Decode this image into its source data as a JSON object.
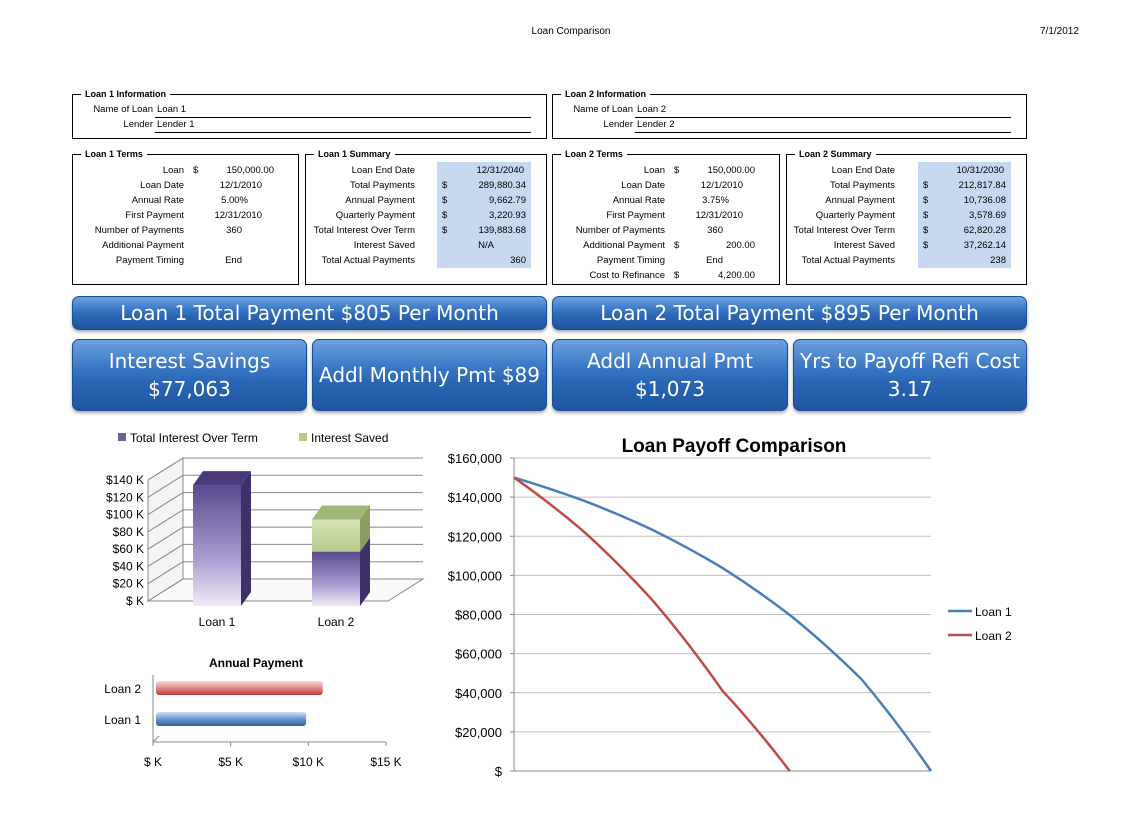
{
  "header": {
    "title": "Loan Comparison",
    "date": "7/1/2012"
  },
  "loan1_info": {
    "legend": "Loan 1 Information",
    "name_label": "Name of Loan",
    "name": "Loan 1",
    "lender_label": "Lender",
    "lender": "Lender 1"
  },
  "loan2_info": {
    "legend": "Loan 2 Information",
    "name_label": "Name of Loan",
    "name": "Loan 2",
    "lender_label": "Lender",
    "lender": "Lender 2"
  },
  "loan1_terms": {
    "legend": "Loan 1 Terms",
    "rows": [
      {
        "label": "Loan",
        "sym": "$",
        "value": "150,000.00"
      },
      {
        "label": "Loan Date",
        "sym": "",
        "value": "12/1/2010"
      },
      {
        "label": "Annual Rate",
        "sym": "",
        "value": "5.00%"
      },
      {
        "label": "First Payment",
        "sym": "",
        "value": "12/31/2010"
      },
      {
        "label": "Number of Payments",
        "sym": "",
        "value": "360"
      },
      {
        "label": "Additional Payment",
        "sym": "",
        "value": ""
      },
      {
        "label": "Payment Timing",
        "sym": "",
        "value": "End"
      }
    ]
  },
  "loan1_summary": {
    "legend": "Loan 1 Summary",
    "rows": [
      {
        "label": "Loan End Date",
        "sym": "",
        "value": "12/31/2040"
      },
      {
        "label": "Total Payments",
        "sym": "$",
        "value": "289,880.34"
      },
      {
        "label": "Annual Payment",
        "sym": "$",
        "value": "9,662.79"
      },
      {
        "label": "Quarterly Payment",
        "sym": "$",
        "value": "3,220.93"
      },
      {
        "label": "Total Interest Over Term",
        "sym": "$",
        "value": "139,883.68"
      },
      {
        "label": "Interest Saved",
        "sym": "",
        "value": "N/A"
      },
      {
        "label": "Total Actual Payments",
        "sym": "",
        "value": "360"
      }
    ]
  },
  "loan2_terms": {
    "legend": "Loan 2 Terms",
    "rows": [
      {
        "label": "Loan",
        "sym": "$",
        "value": "150,000.00"
      },
      {
        "label": "Loan Date",
        "sym": "",
        "value": "12/1/2010"
      },
      {
        "label": "Annual Rate",
        "sym": "",
        "value": "3.75%"
      },
      {
        "label": "First Payment",
        "sym": "",
        "value": "12/31/2010"
      },
      {
        "label": "Number of Payments",
        "sym": "",
        "value": "360"
      },
      {
        "label": "Additional Payment",
        "sym": "$",
        "value": "200.00"
      },
      {
        "label": "Payment Timing",
        "sym": "",
        "value": "End"
      },
      {
        "label": "Cost to Refinance",
        "sym": "$",
        "value": "4,200.00"
      }
    ]
  },
  "loan2_summary": {
    "legend": "Loan 2 Summary",
    "rows": [
      {
        "label": "Loan End Date",
        "sym": "",
        "value": "10/31/2030"
      },
      {
        "label": "Total Payments",
        "sym": "$",
        "value": "212,817.84"
      },
      {
        "label": "Annual Payment",
        "sym": "$",
        "value": "10,736.08"
      },
      {
        "label": "Quarterly Payment",
        "sym": "$",
        "value": "3,578.69"
      },
      {
        "label": "Total Interest Over Term",
        "sym": "$",
        "value": "62,820.28"
      },
      {
        "label": "Interest Saved",
        "sym": "$",
        "value": "37,262.14"
      },
      {
        "label": "Total Actual Payments",
        "sym": "",
        "value": "238"
      }
    ]
  },
  "banners": {
    "loan1_total": "Loan 1 Total Payment $805 Per Month",
    "loan2_total": "Loan 2 Total Payment $895 Per Month",
    "interest_savings_line1": "Interest Savings",
    "interest_savings_line2": "$77,063",
    "addl_monthly": "Addl Monthly Pmt $89",
    "addl_annual_line1": "Addl Annual Pmt",
    "addl_annual_line2": "$1,073",
    "yrs_payoff_line1": "Yrs to Payoff Refi Cost",
    "yrs_payoff_line2": "3.17"
  },
  "colors": {
    "accent_blue": "#2a66b5",
    "summary_fill": "#c6d9f1",
    "interest_bar": "#7a68a8",
    "saved_bar": "#b8cc8c",
    "loan1_line": "#4a7ebb",
    "loan2_line": "#be4b48"
  },
  "chart_data": [
    {
      "type": "bar",
      "title": "",
      "categories": [
        "Loan 1",
        "Loan 2"
      ],
      "stacked": true,
      "series": [
        {
          "name": "Total Interest Over Term",
          "values": [
            139884,
            62820
          ]
        },
        {
          "name": "Interest Saved",
          "values": [
            0,
            37262
          ]
        }
      ],
      "ylim": [
        0,
        140000
      ],
      "yticks": [
        "$ K",
        "$20 K",
        "$40 K",
        "$60 K",
        "$80 K",
        "$100 K",
        "$120 K",
        "$140 K"
      ],
      "legend": "top"
    },
    {
      "type": "bar",
      "orientation": "horizontal",
      "title": "Annual Payment",
      "categories": [
        "Loan 2",
        "Loan 1"
      ],
      "values": [
        10736.08,
        9662.79
      ],
      "xlim": [
        0,
        15000
      ],
      "xticks": [
        "$ K",
        "$5 K",
        "$10 K",
        "$15 K"
      ]
    },
    {
      "type": "line",
      "title": "Loan Payoff Comparison",
      "ylim": [
        0,
        160000
      ],
      "yticks": [
        "$",
        "$20,000",
        "$40,000",
        "$60,000",
        "$80,000",
        "$100,000",
        "$120,000",
        "$140,000",
        "$160,000"
      ],
      "x_unit": "payment number",
      "grid": true,
      "legend": "right",
      "series": [
        {
          "name": "Loan 1",
          "x": [
            0,
            60,
            120,
            180,
            240,
            300,
            360
          ],
          "values": [
            150000,
            138250,
            123150,
            103780,
            78850,
            46900,
            0
          ]
        },
        {
          "name": "Loan 2",
          "x": [
            0,
            60,
            120,
            180,
            238
          ],
          "values": [
            150000,
            122500,
            87000,
            41000,
            0
          ]
        }
      ]
    }
  ]
}
